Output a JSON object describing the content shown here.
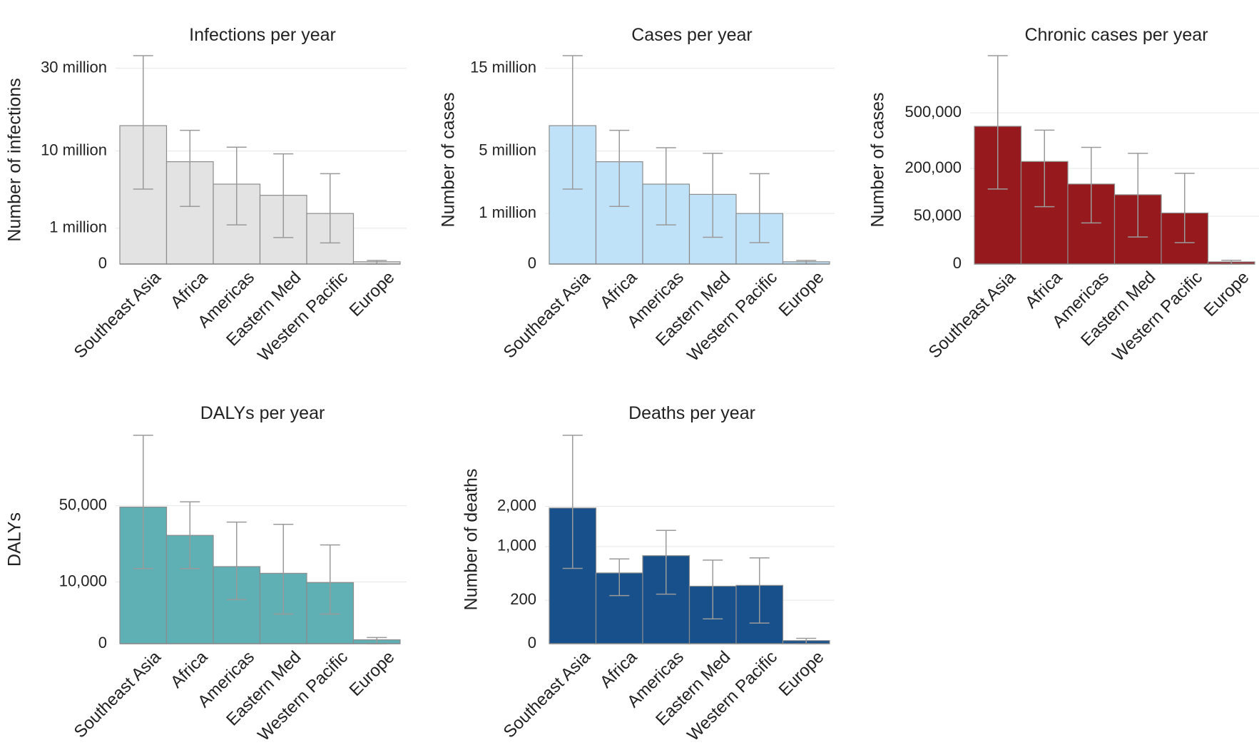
{
  "chart_data": [
    {
      "type": "bar",
      "title": "Infections per year",
      "ylabel": "Number of infections",
      "scale": "sqrt",
      "ymax": 34000000,
      "ticks": [
        {
          "value": 0,
          "label": "0"
        },
        {
          "value": 1000000,
          "label": "1 million"
        },
        {
          "value": 10000000,
          "label": "10 million"
        },
        {
          "value": 30000000,
          "label": "30 million"
        }
      ],
      "color": "#e3e3e3",
      "categories": [
        "Southeast Asia",
        "Africa",
        "Americas",
        "Eastern Med",
        "Western Pacific",
        "Europe"
      ],
      "values": [
        15000000,
        8200000,
        5000000,
        3700000,
        2000000,
        4000
      ],
      "lower": [
        4400000,
        2600000,
        1200000,
        550000,
        350000,
        0
      ],
      "upper": [
        34000000,
        14000000,
        10700000,
        9500000,
        6400000,
        10000
      ]
    },
    {
      "type": "bar",
      "title": "Cases per year",
      "ylabel": "Number of cases",
      "scale": "sqrt",
      "ymax": 17000000,
      "ticks": [
        {
          "value": 0,
          "label": "0"
        },
        {
          "value": 1000000,
          "label": "1 million"
        },
        {
          "value": 5000000,
          "label": "5 million"
        },
        {
          "value": 15000000,
          "label": "15 million"
        }
      ],
      "color": "#bfe2f8",
      "categories": [
        "Southeast Asia",
        "Africa",
        "Americas",
        "Eastern Med",
        "Western Pacific",
        "Europe"
      ],
      "values": [
        7500000,
        4100000,
        2500000,
        1900000,
        1000000,
        2000
      ],
      "lower": [
        2200000,
        1300000,
        600000,
        280000,
        180000,
        0
      ],
      "upper": [
        17000000,
        7000000,
        5300000,
        4800000,
        3200000,
        5000
      ]
    },
    {
      "type": "bar",
      "title": "Chronic cases per year",
      "ylabel": "Number of cases",
      "scale": "sqrt",
      "ymax": 950000,
      "ticks": [
        {
          "value": 0,
          "label": "0"
        },
        {
          "value": 50000,
          "label": "50,000"
        },
        {
          "value": 200000,
          "label": "200,000"
        },
        {
          "value": 500000,
          "label": "500,000"
        }
      ],
      "color": "#961a1d",
      "categories": [
        "Southeast Asia",
        "Africa",
        "Americas",
        "Eastern Med",
        "Western Pacific",
        "Europe"
      ],
      "values": [
        415000,
        230000,
        140000,
        105000,
        57000,
        100
      ],
      "lower": [
        123000,
        72000,
        37000,
        16000,
        10000,
        0
      ],
      "upper": [
        950000,
        392000,
        298000,
        268000,
        180000,
        300
      ]
    },
    {
      "type": "bar",
      "title": "DALYs per year",
      "ylabel": "DALYs",
      "scale": "sqrt",
      "ymax": 114000,
      "ticks": [
        {
          "value": 0,
          "label": "0"
        },
        {
          "value": 10000,
          "label": "10,000"
        },
        {
          "value": 50000,
          "label": "50,000"
        }
      ],
      "color": "#5fb0b5",
      "categories": [
        "Southeast Asia",
        "Africa",
        "Americas",
        "Eastern Med",
        "Western Pacific",
        "Europe"
      ],
      "values": [
        49000,
        30800,
        15600,
        13000,
        9800,
        40
      ],
      "lower": [
        14800,
        14800,
        5100,
        2300,
        2300,
        0
      ],
      "upper": [
        114000,
        52800,
        38800,
        37400,
        25600,
        100
      ]
    },
    {
      "type": "bar",
      "title": "Deaths per year",
      "ylabel": "Number of deaths",
      "scale": "sqrt",
      "ymax": 4600,
      "ticks": [
        {
          "value": 0,
          "label": "0"
        },
        {
          "value": 200,
          "label": "200"
        },
        {
          "value": 1000,
          "label": "1,000"
        },
        {
          "value": 2000,
          "label": "2,000"
        }
      ],
      "color": "#17508a",
      "categories": [
        "Southeast Asia",
        "Africa",
        "Americas",
        "Eastern Med",
        "Western Pacific",
        "Europe"
      ],
      "values": [
        1950,
        530,
        820,
        350,
        360,
        1
      ],
      "lower": [
        600,
        245,
        260,
        65,
        45,
        0
      ],
      "upper": [
        4600,
        760,
        1360,
        740,
        780,
        3
      ]
    }
  ]
}
